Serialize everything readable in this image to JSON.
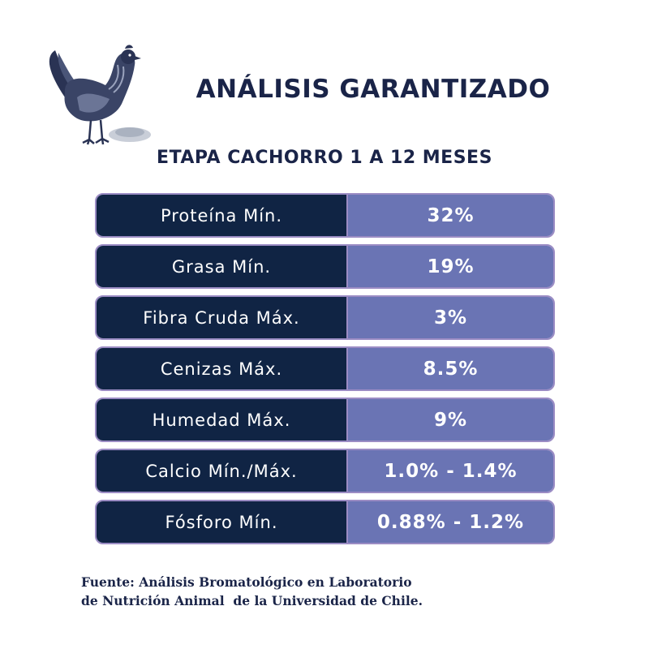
{
  "header": {
    "title": "ANÁLISIS GARANTIZADO",
    "subtitle": "ETAPA CACHORRO 1 A 12 MESES",
    "illustration": "hen-icon"
  },
  "analysis": {
    "rows": [
      {
        "label": "Proteína Mín.",
        "value": "32%"
      },
      {
        "label": "Grasa Mín.",
        "value": "19%"
      },
      {
        "label": "Fibra Cruda Máx.",
        "value": "3%"
      },
      {
        "label": "Cenizas Máx.",
        "value": "8.5%"
      },
      {
        "label": "Humedad Máx.",
        "value": "9%"
      },
      {
        "label": "Calcio Mín./Máx.",
        "value": "1.0% - 1.4%"
      },
      {
        "label": "Fósforo Mín.",
        "value": "0.88% - 1.2%"
      }
    ]
  },
  "footer": {
    "line1": "Fuente: Análisis Bromatológico en Laboratorio",
    "line2": "de Nutrición Animal  de la Universidad de Chile."
  },
  "colors": {
    "label_bg": "#102444",
    "value_bg": "#6a74b4",
    "border": "#9b8cc4",
    "text_dark": "#1a2448"
  }
}
